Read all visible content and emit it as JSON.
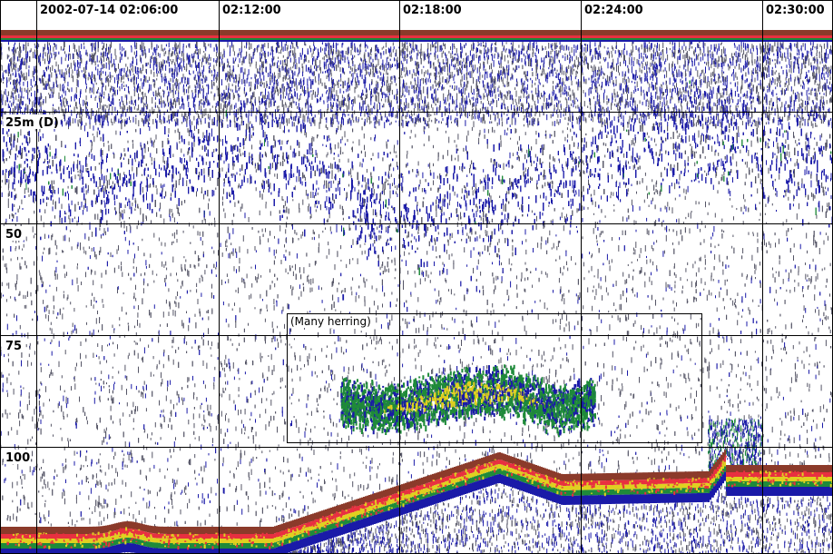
{
  "echogram": {
    "time_labels": [
      "2002-07-14 02:06:00",
      "02:12:00",
      "02:18:00",
      "02:24:00",
      "02:30:00"
    ],
    "depth_labels": [
      "25m (D)",
      "50",
      "75",
      "100"
    ],
    "region_label": "(Many herring)"
  },
  "colors": {
    "background": "#ffffff",
    "grid": "#000000",
    "weak_echo": "#1a1aa8",
    "faint_echo": "#555566",
    "medium_echo": "#1f8a3a",
    "strong_echo": "#e0d020",
    "very_strong_echo": "#e83040",
    "bottom_echo": "#8b3a2a"
  }
}
